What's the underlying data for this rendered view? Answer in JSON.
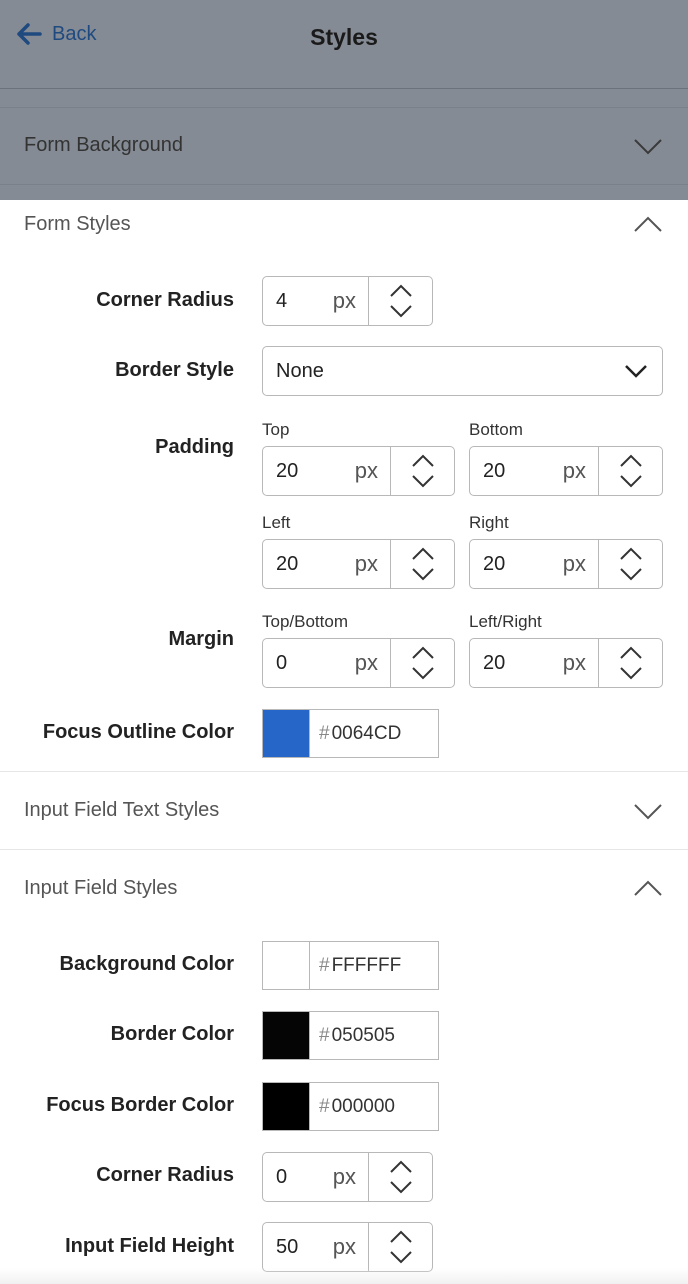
{
  "header": {
    "back_label": "Back",
    "title": "Styles"
  },
  "sections": {
    "form_background": "Form Background",
    "form_styles": "Form Styles",
    "input_field_text_styles": "Input Field Text Styles",
    "input_field_styles": "Input Field Styles"
  },
  "form_styles": {
    "corner_radius": {
      "label": "Corner Radius",
      "value": "4",
      "unit": "px"
    },
    "border_style": {
      "label": "Border Style",
      "value": "None"
    },
    "padding": {
      "label": "Padding",
      "top": {
        "label": "Top",
        "value": "20",
        "unit": "px"
      },
      "bottom": {
        "label": "Bottom",
        "value": "20",
        "unit": "px"
      },
      "left": {
        "label": "Left",
        "value": "20",
        "unit": "px"
      },
      "right": {
        "label": "Right",
        "value": "20",
        "unit": "px"
      }
    },
    "margin": {
      "label": "Margin",
      "top_bottom": {
        "label": "Top/Bottom",
        "value": "0",
        "unit": "px"
      },
      "left_right": {
        "label": "Left/Right",
        "value": "20",
        "unit": "px"
      }
    },
    "focus_outline_color": {
      "label": "Focus Outline Color",
      "hash": "#",
      "value": "0064CD",
      "swatch": "#2566c8"
    }
  },
  "input_field_styles": {
    "background_color": {
      "label": "Background Color",
      "hash": "#",
      "value": "FFFFFF",
      "swatch": "#ffffff"
    },
    "border_color": {
      "label": "Border Color",
      "hash": "#",
      "value": "050505",
      "swatch": "#050505"
    },
    "focus_border_color": {
      "label": "Focus Border Color",
      "hash": "#",
      "value": "000000",
      "swatch": "#000000"
    },
    "corner_radius": {
      "label": "Corner Radius",
      "value": "0",
      "unit": "px"
    },
    "input_field_height": {
      "label": "Input Field Height",
      "value": "50",
      "unit": "px"
    }
  }
}
